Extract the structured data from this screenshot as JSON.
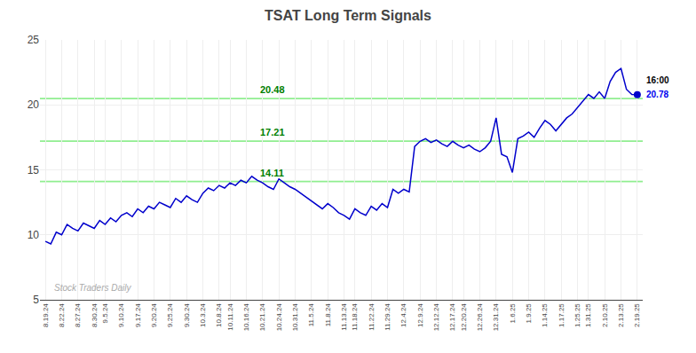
{
  "chart_data": {
    "type": "line",
    "title": "TSAT Long Term Signals",
    "color": "#0000cc",
    "grid": true,
    "ylim": [
      5,
      25
    ],
    "yticks": [
      5,
      10,
      15,
      20,
      25
    ],
    "categories": [
      "8.19.24",
      null,
      null,
      "8.22.24",
      null,
      null,
      "8.27.24",
      null,
      null,
      "8.30.24",
      null,
      "9.5.24",
      null,
      null,
      "9.10.24",
      null,
      null,
      "9.17.24",
      null,
      null,
      "9.20.24",
      null,
      null,
      "9.25.24",
      null,
      null,
      "9.30.24",
      null,
      null,
      "10.3.24",
      null,
      null,
      "10.8.24",
      null,
      "10.11.24",
      null,
      null,
      "10.16.24",
      null,
      null,
      "10.21.24",
      null,
      null,
      "10.24.24",
      null,
      null,
      "10.31.24",
      null,
      null,
      "11.5.24",
      null,
      null,
      "11.8.24",
      null,
      null,
      "11.13.24",
      null,
      "11.18.24",
      null,
      null,
      "11.22.24",
      null,
      null,
      "11.29.24",
      null,
      null,
      "12.4.24",
      null,
      null,
      "12.9.24",
      null,
      null,
      "12.12.24",
      null,
      null,
      "12.17.24",
      null,
      "12.20.24",
      null,
      null,
      "12.26.24",
      null,
      null,
      "12.31.24",
      null,
      null,
      "1.6.25",
      null,
      null,
      "1.9.25",
      null,
      null,
      "1.14.25",
      null,
      null,
      "1.17.25",
      null,
      null,
      "1.25.25",
      null,
      "1.31.25",
      null,
      null,
      "2.10.25",
      null,
      null,
      "2.13.25",
      null,
      null,
      "2.19.25"
    ],
    "values": [
      9.5,
      9.3,
      10.2,
      10.0,
      10.8,
      10.5,
      10.3,
      10.9,
      10.7,
      10.5,
      11.1,
      10.8,
      11.3,
      11.0,
      11.5,
      11.7,
      11.4,
      12.0,
      11.7,
      12.2,
      12.0,
      12.5,
      12.3,
      12.1,
      12.8,
      12.5,
      13.0,
      12.7,
      12.5,
      13.2,
      13.6,
      13.4,
      13.8,
      13.6,
      14.0,
      13.8,
      14.2,
      14.0,
      14.5,
      14.2,
      14.0,
      13.7,
      13.5,
      14.3,
      14.0,
      13.7,
      13.5,
      13.2,
      12.9,
      12.6,
      12.3,
      12.0,
      12.4,
      12.1,
      11.7,
      11.5,
      11.2,
      12.0,
      11.7,
      11.5,
      12.2,
      11.9,
      12.4,
      12.1,
      13.5,
      13.2,
      13.5,
      13.3,
      16.8,
      17.2,
      17.4,
      17.1,
      17.3,
      17.0,
      16.8,
      17.2,
      16.9,
      16.7,
      16.9,
      16.6,
      16.4,
      16.7,
      17.2,
      19.0,
      16.2,
      16.0,
      14.8,
      17.4,
      17.6,
      17.9,
      17.5,
      18.2,
      18.8,
      18.5,
      18.0,
      18.5,
      19.0,
      19.3,
      19.8,
      20.3,
      20.8,
      20.5,
      21.0,
      20.5,
      21.8,
      22.5,
      22.8,
      21.2,
      20.8,
      20.78
    ],
    "hlines": {
      "values": [
        14.11,
        17.21,
        20.48
      ],
      "labels": [
        "14.11",
        "17.21",
        "20.48"
      ],
      "color": "#90EE90"
    },
    "annotations": [
      {
        "text": "16:00",
        "color": "#000000"
      },
      {
        "text": "20.78",
        "color": "#0000ee"
      }
    ],
    "watermark": {
      "text": "Stock Traders Daily",
      "color": "#aaaaaa"
    }
  }
}
